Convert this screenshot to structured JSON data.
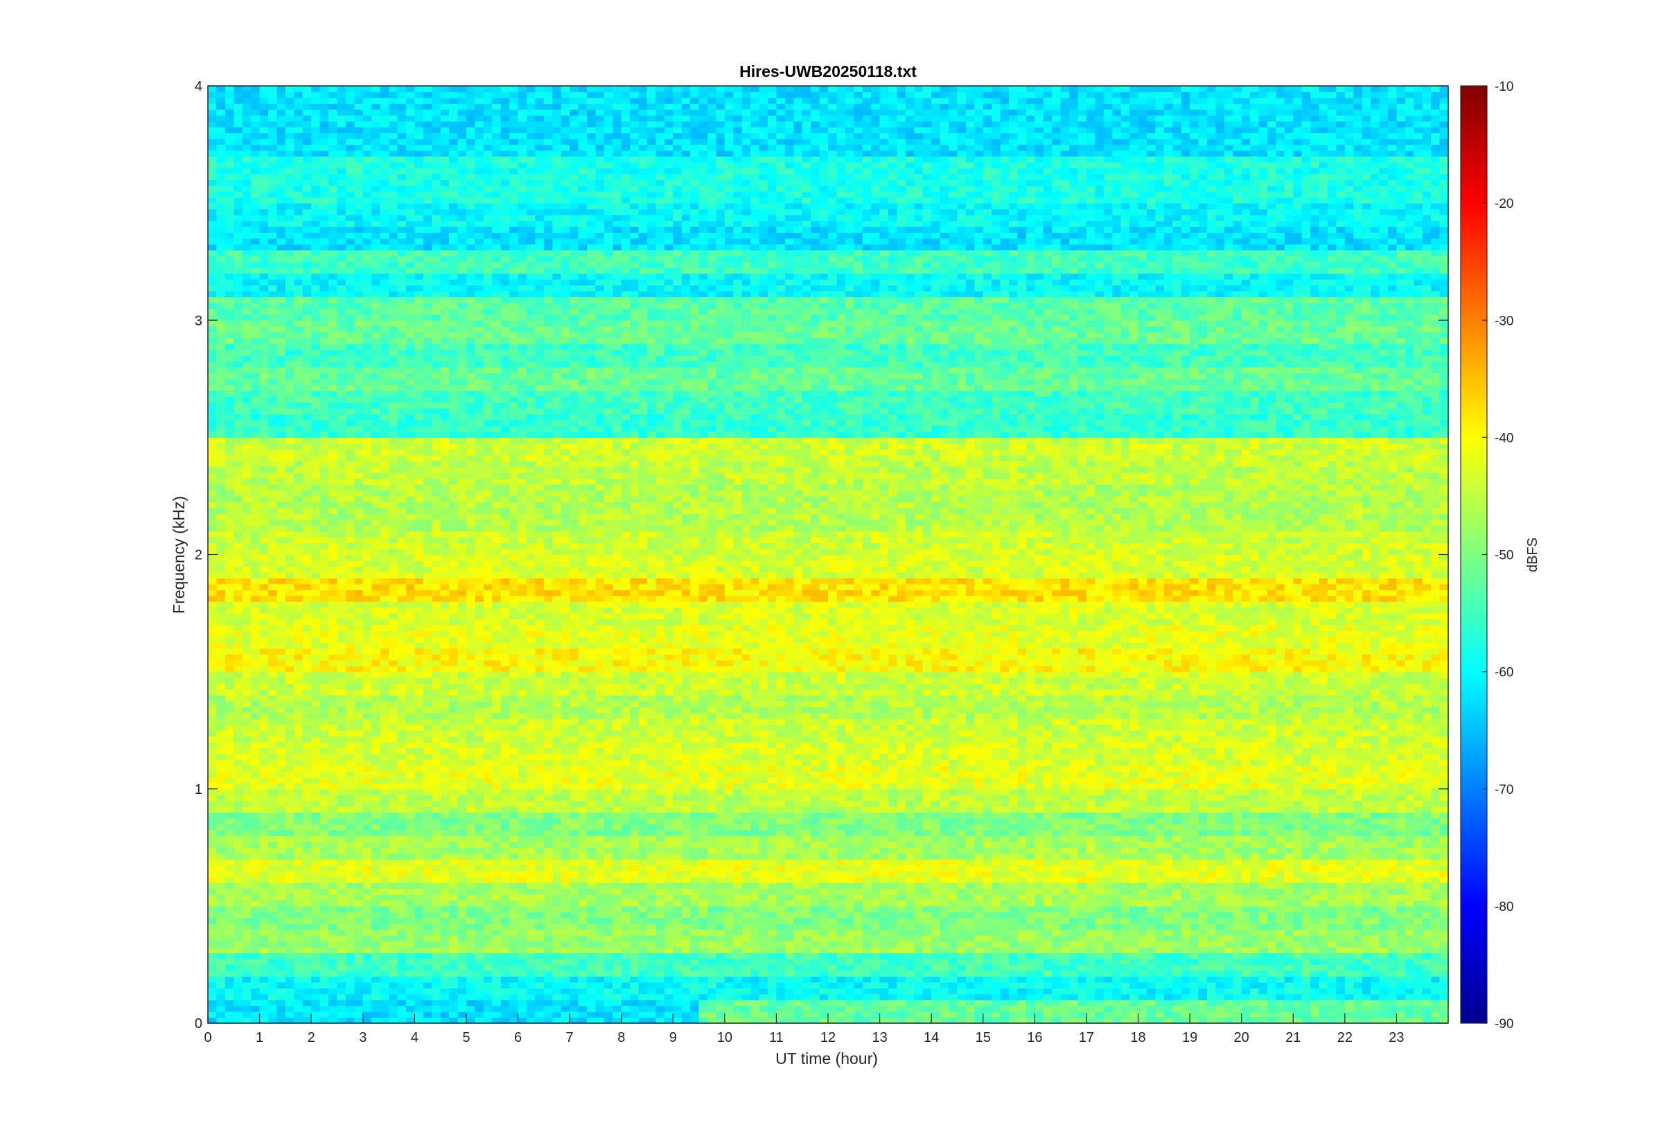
{
  "chart_data": {
    "type": "heatmap",
    "title": "Hires-UWB20250118.txt",
    "xlabel": "UT time (hour)",
    "ylabel": "Frequency (kHz)",
    "colorbar_label": "dBFS",
    "colormap": "jet",
    "xlim": [
      0,
      24
    ],
    "ylim": [
      0,
      4
    ],
    "clim": [
      -90,
      -10
    ],
    "x_ticks": [
      "0",
      "1",
      "2",
      "3",
      "4",
      "5",
      "6",
      "7",
      "8",
      "9",
      "10",
      "11",
      "12",
      "13",
      "14",
      "15",
      "16",
      "17",
      "18",
      "19",
      "20",
      "21",
      "22",
      "23"
    ],
    "y_ticks": [
      "0",
      "1",
      "2",
      "3",
      "4"
    ],
    "colorbar_ticks": [
      "-10",
      "-20",
      "-30",
      "-40",
      "-50",
      "-60",
      "-70",
      "-80",
      "-90"
    ],
    "background_level_dbfs": -62,
    "frequency_bands_khz": [
      {
        "f": 0.02,
        "level": -76
      },
      {
        "f": 0.05,
        "level": -52,
        "note": "strong after 9.5 h"
      },
      {
        "f": 0.1,
        "level": -78
      },
      {
        "f": 0.15,
        "level": -60
      },
      {
        "f": 0.25,
        "level": -55
      },
      {
        "f": 0.35,
        "level": -48
      },
      {
        "f": 0.45,
        "level": -50
      },
      {
        "f": 0.55,
        "level": -47
      },
      {
        "f": 0.65,
        "level": -42
      },
      {
        "f": 0.75,
        "level": -47
      },
      {
        "f": 0.85,
        "level": -50
      },
      {
        "f": 0.95,
        "level": -45
      },
      {
        "f": 1.05,
        "level": -42
      },
      {
        "f": 1.15,
        "level": -43
      },
      {
        "f": 1.25,
        "level": -44
      },
      {
        "f": 1.35,
        "level": -46
      },
      {
        "f": 1.45,
        "level": -44
      },
      {
        "f": 1.55,
        "level": -40
      },
      {
        "f": 1.65,
        "level": -42
      },
      {
        "f": 1.75,
        "level": -43
      },
      {
        "f": 1.85,
        "level": -38
      },
      {
        "f": 1.95,
        "level": -43
      },
      {
        "f": 2.05,
        "level": -44
      },
      {
        "f": 2.15,
        "level": -46
      },
      {
        "f": 2.25,
        "level": -46
      },
      {
        "f": 2.35,
        "level": -45
      },
      {
        "f": 2.45,
        "level": -44
      },
      {
        "f": 2.55,
        "level": -56
      },
      {
        "f": 2.65,
        "level": -55
      },
      {
        "f": 2.75,
        "level": -52
      },
      {
        "f": 2.85,
        "level": -55
      },
      {
        "f": 2.95,
        "level": -52
      },
      {
        "f": 3.05,
        "level": -53
      },
      {
        "f": 3.15,
        "level": -60
      },
      {
        "f": 3.25,
        "level": -55
      },
      {
        "f": 3.35,
        "level": -62
      },
      {
        "f": 3.45,
        "level": -60
      },
      {
        "f": 3.55,
        "level": -58
      },
      {
        "f": 3.65,
        "level": -58
      },
      {
        "f": 3.75,
        "level": -64
      },
      {
        "f": 3.85,
        "level": -66
      },
      {
        "f": 3.95,
        "level": -62
      }
    ]
  }
}
